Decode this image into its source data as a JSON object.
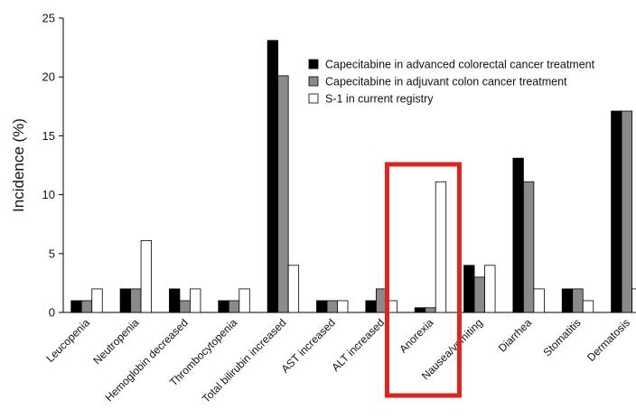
{
  "chart_data": {
    "type": "bar",
    "ylabel": "Incidence (%)",
    "xlabel": "",
    "ylim": [
      0,
      25
    ],
    "yticks": [
      0,
      5,
      10,
      15,
      20,
      25
    ],
    "grid": false,
    "legend_position": "top-right",
    "categories": [
      "Leucopenia",
      "Neutropenia",
      "Hemoglobin decreased",
      "Thrombocytopenia",
      "Total bilirubin increased",
      "AST increased",
      "ALT increased",
      "Anorexia",
      "Nausea/vomiting",
      "Diarrhea",
      "Stomatitis",
      "Dermatosis"
    ],
    "series": [
      {
        "name": "Capecitabine in advanced colorectal cancer treatment",
        "color": "#000000",
        "values": [
          1,
          2,
          2,
          1,
          23.1,
          1,
          1,
          0.4,
          4,
          13.1,
          2,
          17.1
        ]
      },
      {
        "name": "Capecitabine in adjuvant colon cancer treatment",
        "color": "#8a8a8a",
        "values": [
          1,
          2,
          1,
          1,
          20.1,
          1,
          2,
          0.4,
          3,
          11.1,
          2,
          17.1
        ]
      },
      {
        "name": "S-1 in current registry",
        "color": "#ffffff",
        "values": [
          2,
          6.1,
          2,
          2,
          4,
          1,
          1,
          11.1,
          4,
          2,
          1,
          2
        ]
      }
    ],
    "highlight": {
      "category": "Anorexia",
      "color": "#e2231a"
    }
  }
}
